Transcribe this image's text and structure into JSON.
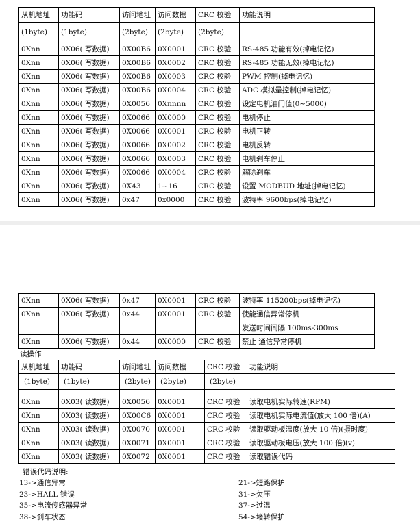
{
  "table1": {
    "header": [
      "从机地址",
      "功能码",
      "访问地址",
      "访问数据",
      "CRC 校验",
      "功能说明"
    ],
    "subheader": [
      "(1byte)",
      "(1byte)",
      "(2byte)",
      "(2byte)",
      "(2byte)"
    ],
    "rows": [
      [
        "0Xnn",
        "0X06( 写数据)",
        "0X00B6",
        "0X0001",
        "CRC 校验",
        "RS-485 功能有效(掉电记忆)"
      ],
      [
        "0Xnn",
        "0X06( 写数据)",
        "0X00B6",
        "0X0002",
        "CRC 校验",
        "RS-485 功能无效(掉电记忆)"
      ],
      [
        "0Xnn",
        "0X06( 写数据)",
        "0X00B6",
        "0X0003",
        "CRC 校验",
        "PWM 控制(掉电记忆)"
      ],
      [
        "0Xnn",
        "0X06( 写数据)",
        "0X00B6",
        "0X0004",
        "CRC 校验",
        "ADC 模拟量控制(掉电记忆)"
      ],
      [
        "0Xnn",
        "0X06( 写数据)",
        "0X0056",
        "0Xnnnn",
        "CRC 校验",
        "设定电机油门值(0~5000)"
      ],
      [
        "0Xnn",
        "0X06( 写数据)",
        "0X0066",
        "0X0000",
        "CRC 校验",
        "电机停止"
      ],
      [
        "0Xnn",
        "0X06( 写数据)",
        "0X0066",
        "0X0001",
        "CRC 校验",
        "电机正转"
      ],
      [
        "0Xnn",
        "0X06( 写数据)",
        "0X0066",
        "0X0002",
        "CRC 校验",
        "电机反转"
      ],
      [
        "0Xnn",
        "0X06( 写数据)",
        "0X0066",
        "0X0003",
        "CRC 校验",
        "电机刹车停止"
      ],
      [
        "0Xnn",
        "0X06( 写数据)",
        "0X0066",
        "0X0004",
        "CRC 校验",
        "解除刹车"
      ],
      [
        "0Xnn",
        "0X06( 写数据)",
        "0X43",
        "1~16",
        "CRC 校验",
        "设置 MODBUD 地址(掉电记忆)"
      ],
      [
        "0Xnn",
        "0X06( 写数据)",
        "0x47",
        "0x0000",
        "CRC 校验",
        "波特率 9600bps(掉电记忆)"
      ]
    ]
  },
  "table2": {
    "rows": [
      [
        "0Xnn",
        "0X06( 写数据)",
        "0x47",
        "0X0001",
        "CRC 校验",
        "波特率 115200bps(掉电记忆)"
      ],
      [
        "0Xnn",
        "0X06( 写数据)",
        "0x44",
        "0X0001",
        "CRC 校验",
        "使能通信异常停机"
      ],
      [
        "发送时间间隔 100ms-300ms"
      ],
      [
        "0Xnn",
        "0X06( 写数据)",
        "0x44",
        "0X0000",
        "CRC 校验",
        "禁止 通信异常停机"
      ]
    ]
  },
  "read_title": "读操作",
  "table3": {
    "header": [
      "从机地址",
      "功能码",
      "访问地址",
      "访问数据",
      "CRC 校验",
      "功能说明"
    ],
    "subheader": [
      "(1byte)",
      "(1byte)",
      "(2byte)",
      "(2byte)",
      "(2byte)"
    ],
    "rows": [
      [
        "0Xnn",
        "0X03( 读数据)",
        "0X0056",
        "0X0001",
        "CRC 校验",
        "读取电机实际转速(RPM)"
      ],
      [
        "0Xnn",
        "0X03( 读数据)",
        "0X00C6",
        "0X0001",
        "CRC 校验",
        "读取电机实际电流值(放大 100 倍)(A)"
      ],
      [
        "0Xnn",
        "0X03( 读数据)",
        "0X0070",
        "0X0001",
        "CRC 校验",
        "读取驱动板温度(放大 10 倍)(摄时度)"
      ],
      [
        "0Xnn",
        "0X03( 读数据)",
        "0X0071",
        "0X0001",
        "CRC 校验",
        "读取驱动板电压(放大 100 倍)(v)"
      ],
      [
        "0Xnn",
        "0X03( 读数据)",
        "0X0072",
        "0X0001",
        "CRC 校验",
        "读取错误代码"
      ]
    ]
  },
  "error_notes": {
    "title": "错误代码说明:",
    "items": [
      [
        "13->通信异常",
        "21->短路保护"
      ],
      [
        "23->HALL 错误",
        "31->欠压"
      ],
      [
        "35->电流传感器异常",
        "37->过温"
      ],
      [
        "38->刹车状态",
        "54->堵转保护"
      ]
    ]
  }
}
